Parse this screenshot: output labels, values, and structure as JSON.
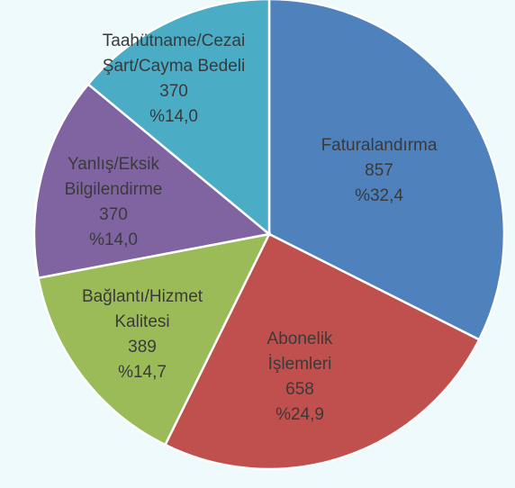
{
  "chart_data": {
    "type": "pie",
    "categories": [
      "Faturalandırma",
      "Abonelik İşlemleri",
      "Bağlantı/Hizmet Kalitesi",
      "Yanlış/Eksik Bilgilendirme",
      "Taahütname/Cezai Şart/Cayma Bedeli"
    ],
    "values": [
      857,
      658,
      389,
      370,
      370
    ],
    "percentages": [
      32.4,
      24.9,
      14.7,
      14.0,
      14.0
    ],
    "percentage_labels": [
      "%32,4",
      "%24,9",
      "%14,7",
      "%14,0",
      "%14,0"
    ],
    "colors": [
      "#4f81bd",
      "#c0504d",
      "#9bbb59",
      "#8064a2",
      "#4bacc6"
    ]
  }
}
